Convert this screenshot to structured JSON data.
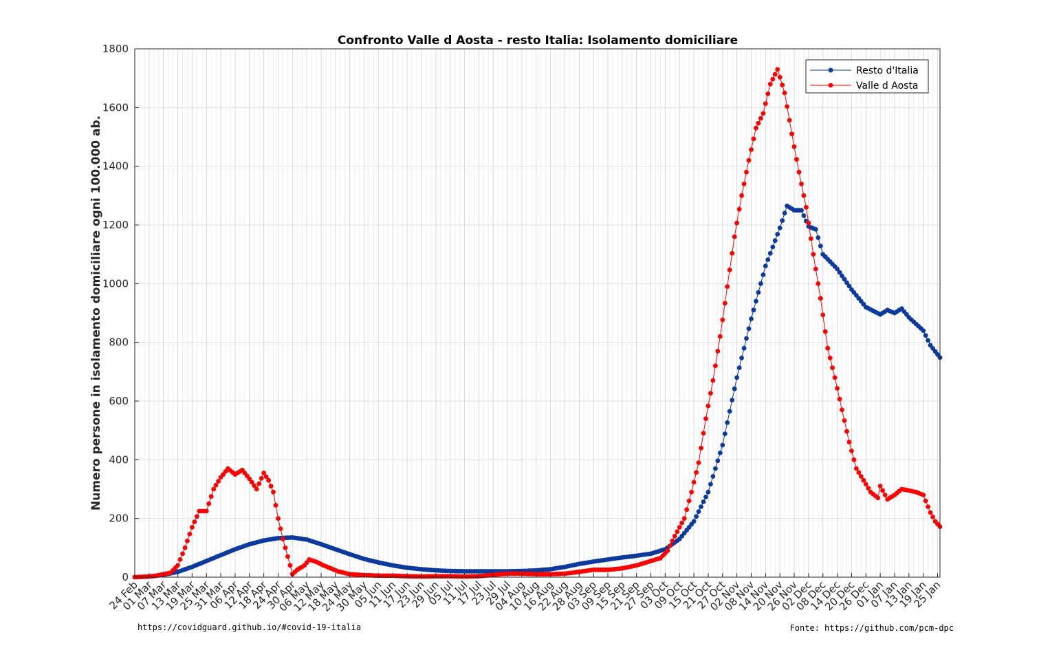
{
  "chart_data": {
    "type": "line",
    "title": "Confronto Valle d Aosta - resto Italia: Isolamento domiciliare",
    "xlabel": "",
    "ylabel": "Numero persone in isolamento domiciliare ogni 100.000 ab.",
    "ylim": [
      0,
      1800
    ],
    "yticks": [
      0,
      200,
      400,
      600,
      800,
      1000,
      1200,
      1400,
      1600,
      1800
    ],
    "x_start": "2020-02-24",
    "x_end": "2021-01-26",
    "x_tick_labels": [
      "24 Feb",
      "01 Mar",
      "07 Mar",
      "13 Mar",
      "19 Mar",
      "25 Mar",
      "31 Mar",
      "06 Apr",
      "12 Apr",
      "18 Apr",
      "24 Apr",
      "30 Apr",
      "06 May",
      "12 May",
      "18 May",
      "24 May",
      "30 May",
      "05 Jun",
      "11 Jun",
      "17 Jun",
      "23 Jun",
      "29 Jun",
      "05 Jul",
      "11 Jul",
      "17 Jul",
      "23 Jul",
      "29 Jul",
      "04 Aug",
      "10 Aug",
      "16 Aug",
      "22 Aug",
      "28 Aug",
      "03 Sep",
      "09 Sep",
      "15 Sep",
      "21 Sep",
      "27 Sep",
      "03 Oct",
      "09 Oct",
      "15 Oct",
      "21 Oct",
      "27 Oct",
      "02 Nov",
      "08 Nov",
      "14 Nov",
      "20 Nov",
      "26 Nov",
      "02 Dec",
      "08 Dec",
      "14 Dec",
      "20 Dec",
      "26 Dec",
      "01 Jan",
      "07 Jan",
      "13 Jan",
      "19 Jan",
      "25 Jan"
    ],
    "grid": true,
    "legend_position": "top-right",
    "series": [
      {
        "name": "Resto d'Italia",
        "color": "#0b3a9c",
        "points": [
          [
            "2020-02-24",
            0
          ],
          [
            "2020-03-01",
            2
          ],
          [
            "2020-03-07",
            8
          ],
          [
            "2020-03-13",
            18
          ],
          [
            "2020-03-19",
            35
          ],
          [
            "2020-03-25",
            55
          ],
          [
            "2020-03-31",
            75
          ],
          [
            "2020-04-06",
            95
          ],
          [
            "2020-04-12",
            112
          ],
          [
            "2020-04-18",
            125
          ],
          [
            "2020-04-24",
            133
          ],
          [
            "2020-04-30",
            135
          ],
          [
            "2020-05-06",
            128
          ],
          [
            "2020-05-12",
            112
          ],
          [
            "2020-05-18",
            95
          ],
          [
            "2020-05-24",
            78
          ],
          [
            "2020-05-30",
            62
          ],
          [
            "2020-06-05",
            50
          ],
          [
            "2020-06-11",
            40
          ],
          [
            "2020-06-17",
            32
          ],
          [
            "2020-06-23",
            27
          ],
          [
            "2020-06-29",
            23
          ],
          [
            "2020-07-05",
            21
          ],
          [
            "2020-07-11",
            20
          ],
          [
            "2020-07-17",
            20
          ],
          [
            "2020-07-23",
            20
          ],
          [
            "2020-07-29",
            20
          ],
          [
            "2020-08-04",
            21
          ],
          [
            "2020-08-10",
            23
          ],
          [
            "2020-08-16",
            27
          ],
          [
            "2020-08-22",
            35
          ],
          [
            "2020-08-28",
            45
          ],
          [
            "2020-09-03",
            53
          ],
          [
            "2020-09-09",
            60
          ],
          [
            "2020-09-15",
            67
          ],
          [
            "2020-09-21",
            73
          ],
          [
            "2020-09-27",
            80
          ],
          [
            "2020-10-03",
            95
          ],
          [
            "2020-10-09",
            130
          ],
          [
            "2020-10-15",
            190
          ],
          [
            "2020-10-21",
            290
          ],
          [
            "2020-10-27",
            450
          ],
          [
            "2020-11-02",
            680
          ],
          [
            "2020-11-08",
            880
          ],
          [
            "2020-11-14",
            1060
          ],
          [
            "2020-11-20",
            1190
          ],
          [
            "2020-11-23",
            1265
          ],
          [
            "2020-11-26",
            1250
          ],
          [
            "2020-11-29",
            1250
          ],
          [
            "2020-12-02",
            1195
          ],
          [
            "2020-12-05",
            1185
          ],
          [
            "2020-12-08",
            1100
          ],
          [
            "2020-12-14",
            1050
          ],
          [
            "2020-12-20",
            980
          ],
          [
            "2020-12-26",
            920
          ],
          [
            "2021-01-01",
            895
          ],
          [
            "2021-01-04",
            910
          ],
          [
            "2021-01-07",
            900
          ],
          [
            "2021-01-10",
            915
          ],
          [
            "2021-01-13",
            885
          ],
          [
            "2021-01-19",
            840
          ],
          [
            "2021-01-22",
            790
          ],
          [
            "2021-01-26",
            748
          ]
        ]
      },
      {
        "name": "Valle d Aosta",
        "color": "#ff0000",
        "points": [
          [
            "2020-02-24",
            0
          ],
          [
            "2020-03-01",
            2
          ],
          [
            "2020-03-04",
            5
          ],
          [
            "2020-03-07",
            10
          ],
          [
            "2020-03-10",
            15
          ],
          [
            "2020-03-13",
            40
          ],
          [
            "2020-03-16",
            100
          ],
          [
            "2020-03-19",
            170
          ],
          [
            "2020-03-22",
            225
          ],
          [
            "2020-03-25",
            225
          ],
          [
            "2020-03-28",
            300
          ],
          [
            "2020-03-31",
            340
          ],
          [
            "2020-04-03",
            370
          ],
          [
            "2020-04-06",
            350
          ],
          [
            "2020-04-09",
            365
          ],
          [
            "2020-04-12",
            335
          ],
          [
            "2020-04-15",
            300
          ],
          [
            "2020-04-18",
            355
          ],
          [
            "2020-04-20",
            330
          ],
          [
            "2020-04-22",
            290
          ],
          [
            "2020-04-24",
            200
          ],
          [
            "2020-04-26",
            130
          ],
          [
            "2020-04-28",
            70
          ],
          [
            "2020-04-30",
            10
          ],
          [
            "2020-05-02",
            25
          ],
          [
            "2020-05-05",
            40
          ],
          [
            "2020-05-07",
            60
          ],
          [
            "2020-05-10",
            52
          ],
          [
            "2020-05-13",
            40
          ],
          [
            "2020-05-16",
            30
          ],
          [
            "2020-05-19",
            20
          ],
          [
            "2020-05-24",
            10
          ],
          [
            "2020-05-30",
            7
          ],
          [
            "2020-06-05",
            5
          ],
          [
            "2020-06-11",
            5
          ],
          [
            "2020-06-17",
            3
          ],
          [
            "2020-06-23",
            2
          ],
          [
            "2020-06-29",
            3
          ],
          [
            "2020-07-05",
            3
          ],
          [
            "2020-07-11",
            2
          ],
          [
            "2020-07-17",
            3
          ],
          [
            "2020-07-23",
            8
          ],
          [
            "2020-07-29",
            12
          ],
          [
            "2020-08-04",
            12
          ],
          [
            "2020-08-10",
            10
          ],
          [
            "2020-08-16",
            10
          ],
          [
            "2020-08-22",
            12
          ],
          [
            "2020-08-28",
            18
          ],
          [
            "2020-09-03",
            25
          ],
          [
            "2020-09-09",
            25
          ],
          [
            "2020-09-15",
            30
          ],
          [
            "2020-09-21",
            40
          ],
          [
            "2020-09-27",
            55
          ],
          [
            "2020-10-01",
            65
          ],
          [
            "2020-10-04",
            90
          ],
          [
            "2020-10-07",
            140
          ],
          [
            "2020-10-11",
            200
          ],
          [
            "2020-10-14",
            290
          ],
          [
            "2020-10-17",
            390
          ],
          [
            "2020-10-20",
            540
          ],
          [
            "2020-10-23",
            670
          ],
          [
            "2020-10-26",
            820
          ],
          [
            "2020-10-29",
            990
          ],
          [
            "2020-11-01",
            1160
          ],
          [
            "2020-11-04",
            1300
          ],
          [
            "2020-11-07",
            1420
          ],
          [
            "2020-11-10",
            1530
          ],
          [
            "2020-11-13",
            1580
          ],
          [
            "2020-11-16",
            1680
          ],
          [
            "2020-11-19",
            1730
          ],
          [
            "2020-11-22",
            1650
          ],
          [
            "2020-11-25",
            1510
          ],
          [
            "2020-11-28",
            1380
          ],
          [
            "2020-12-01",
            1260
          ],
          [
            "2020-12-04",
            1100
          ],
          [
            "2020-12-07",
            950
          ],
          [
            "2020-12-10",
            780
          ],
          [
            "2020-12-13",
            680
          ],
          [
            "2020-12-16",
            570
          ],
          [
            "2020-12-19",
            460
          ],
          [
            "2020-12-22",
            370
          ],
          [
            "2020-12-25",
            330
          ],
          [
            "2020-12-28",
            290
          ],
          [
            "2020-12-31",
            270
          ],
          [
            "2021-01-01",
            310
          ],
          [
            "2021-01-04",
            265
          ],
          [
            "2021-01-07",
            280
          ],
          [
            "2021-01-10",
            300
          ],
          [
            "2021-01-13",
            295
          ],
          [
            "2021-01-16",
            290
          ],
          [
            "2021-01-19",
            280
          ],
          [
            "2021-01-22",
            220
          ],
          [
            "2021-01-24",
            190
          ],
          [
            "2021-01-26",
            172
          ]
        ]
      }
    ]
  },
  "footer": {
    "left_note": "https://covidguard.github.io/#covid-19-italia",
    "right_note": "Fonte: https://github.com/pcm-dpc"
  }
}
